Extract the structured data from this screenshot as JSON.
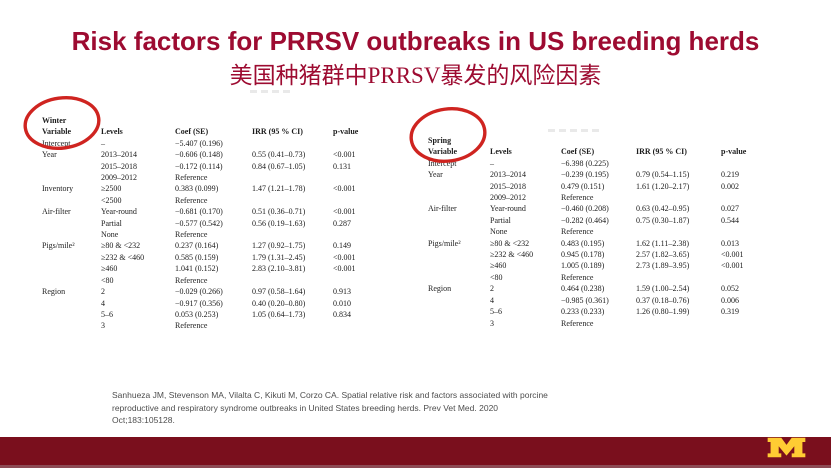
{
  "slide": {
    "title": "Risk factors for PRRSV outbreaks in US breeding herds",
    "subtitle_zh": "美国种猪群中PRRSV暴发的风险因素"
  },
  "colors": {
    "title_red": "#9d0b31",
    "annotation_circle_red": "#cf2420",
    "footer_maroon": "#7a0f1d",
    "logo_gold": "#ffcc33"
  },
  "tables": [
    {
      "season": "Winter",
      "variable_header": "Variable",
      "headers": [
        "Levels",
        "Coef (SE)",
        "IRR (95 % CI)",
        "p-value"
      ],
      "rows": [
        [
          "Intercept",
          "–",
          "−5.407 (0.196)",
          "",
          ""
        ],
        [
          "Year",
          "2013–2014",
          "−0.606 (0.148)",
          "0.55 (0.41–0.73)",
          "<0.001"
        ],
        [
          "",
          "2015–2018",
          "−0.172 (0.114)",
          "0.84 (0.67–1.05)",
          "0.131"
        ],
        [
          "",
          "2009–2012",
          "Reference",
          "",
          ""
        ],
        [
          "Inventory",
          "≥2500",
          "0.383 (0.099)",
          "1.47 (1.21–1.78)",
          "<0.001"
        ],
        [
          "",
          "<2500",
          "Reference",
          "",
          ""
        ],
        [
          "Air-filter",
          "Year-round",
          "−0.681 (0.170)",
          "0.51 (0.36–0.71)",
          "<0.001"
        ],
        [
          "",
          "Partial",
          "−0.577 (0.542)",
          "0.56 (0.19–1.63)",
          "0.287"
        ],
        [
          "",
          "None",
          "Reference",
          "",
          ""
        ],
        [
          "Pigs/mile²",
          "≥80 & <232",
          "0.237 (0.164)",
          "1.27 (0.92–1.75)",
          "0.149"
        ],
        [
          "",
          "≥232 & <460",
          "0.585 (0.159)",
          "1.79 (1.31–2.45)",
          "<0.001"
        ],
        [
          "",
          "≥460",
          "1.041 (0.152)",
          "2.83 (2.10–3.81)",
          "<0.001"
        ],
        [
          "",
          "<80",
          "Reference",
          "",
          ""
        ],
        [
          "Region",
          "2",
          "−0.029 (0.266)",
          "0.97 (0.58–1.64)",
          "0.913"
        ],
        [
          "",
          "4",
          "−0.917 (0.356)",
          "0.40 (0.20–0.80)",
          "0.010"
        ],
        [
          "",
          "5–6",
          "0.053 (0.253)",
          "1.05 (0.64–1.73)",
          "0.834"
        ],
        [
          "",
          "3",
          "Reference",
          "",
          ""
        ]
      ]
    },
    {
      "season": "Spring",
      "variable_header": "Variable",
      "headers": [
        "Levels",
        "Coef (SE)",
        "IRR (95 % CI)",
        "p-value"
      ],
      "rows": [
        [
          "Intercept",
          "–",
          "−6.398 (0.225)",
          "",
          ""
        ],
        [
          "Year",
          "2013–2014",
          "−0.239 (0.195)",
          "0.79 (0.54–1.15)",
          "0.219"
        ],
        [
          "",
          "2015–2018",
          "0.479 (0.151)",
          "1.61 (1.20–2.17)",
          "0.002"
        ],
        [
          "",
          "2009–2012",
          "Reference",
          "",
          ""
        ],
        [
          "Air-filter",
          "Year-round",
          "−0.460 (0.208)",
          "0.63 (0.42–0.95)",
          "0.027"
        ],
        [
          "",
          "Partial",
          "−0.282 (0.464)",
          "0.75 (0.30–1.87)",
          "0.544"
        ],
        [
          "",
          "None",
          "Reference",
          "",
          ""
        ],
        [
          "Pigs/mile²",
          "≥80 & <232",
          "0.483 (0.195)",
          "1.62 (1.11–2.38)",
          "0.013"
        ],
        [
          "",
          "≥232 & <460",
          "0.945 (0.178)",
          "2.57 (1.82–3.65)",
          "<0.001"
        ],
        [
          "",
          "≥460",
          "1.005 (0.189)",
          "2.73 (1.89–3.95)",
          "<0.001"
        ],
        [
          "",
          "<80",
          "Reference",
          "",
          ""
        ],
        [
          "Region",
          "2",
          "0.464 (0.238)",
          "1.59 (1.00–2.54)",
          "0.052"
        ],
        [
          "",
          "4",
          "−0.985 (0.361)",
          "0.37 (0.18–0.76)",
          "0.006"
        ],
        [
          "",
          "5–6",
          "0.233 (0.233)",
          "1.26 (0.80–1.99)",
          "0.319"
        ],
        [
          "",
          "3",
          "Reference",
          "",
          ""
        ]
      ]
    }
  ],
  "citation": {
    "lines": [
      "Sanhueza JM, Stevenson MA, Vilalta C, Kikuti M, Corzo CA. Spatial relative risk and factors associated with porcine",
      "reproductive and respiratory syndrome outbreaks in United States breeding herds. Prev Vet Med. 2020",
      "Oct;183:105128."
    ]
  },
  "footer": {
    "logo_icon": "university-of-minnesota-block-M"
  }
}
